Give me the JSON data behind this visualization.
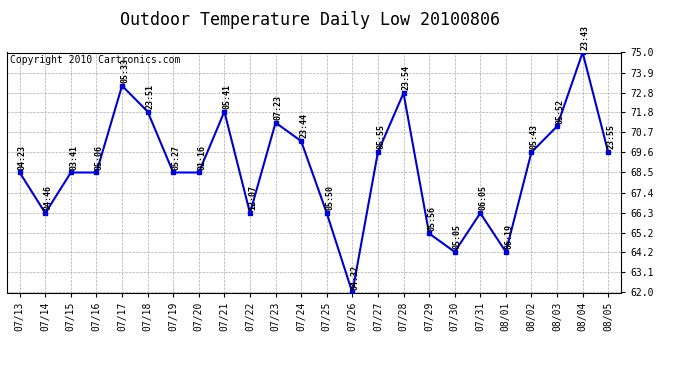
{
  "title": "Outdoor Temperature Daily Low 20100806",
  "copyright": "Copyright 2010 Cartronics.com",
  "dates": [
    "07/13",
    "07/14",
    "07/15",
    "07/16",
    "07/17",
    "07/18",
    "07/19",
    "07/20",
    "07/21",
    "07/22",
    "07/23",
    "07/24",
    "07/25",
    "07/26",
    "07/27",
    "07/28",
    "07/29",
    "07/30",
    "07/31",
    "08/01",
    "08/02",
    "08/03",
    "08/04",
    "08/05"
  ],
  "values": [
    68.5,
    66.3,
    68.5,
    68.5,
    73.2,
    71.8,
    68.5,
    68.5,
    71.8,
    66.3,
    71.2,
    70.2,
    66.3,
    62.0,
    69.6,
    72.8,
    65.2,
    64.2,
    66.3,
    64.2,
    69.6,
    71.0,
    75.0,
    69.6
  ],
  "labels": [
    "04:23",
    "04:46",
    "03:41",
    "05:06",
    "05:33",
    "23:51",
    "05:27",
    "01:16",
    "05:41",
    "12:07",
    "07:23",
    "23:44",
    "05:50",
    "04:32",
    "05:55",
    "23:54",
    "05:56",
    "05:05",
    "06:05",
    "06:19",
    "05:43",
    "05:52",
    "23:43",
    "23:55"
  ],
  "line_color": "#0000cc",
  "marker_color": "#0000cc",
  "bg_color": "#ffffff",
  "grid_color": "#aaaaaa",
  "ylim": [
    62.0,
    75.0
  ],
  "yticks": [
    62.0,
    63.1,
    64.2,
    65.2,
    66.3,
    67.4,
    68.5,
    69.6,
    70.7,
    71.8,
    72.8,
    73.9,
    75.0
  ],
  "title_fontsize": 12,
  "label_fontsize": 6,
  "copyright_fontsize": 7,
  "tick_fontsize": 7
}
